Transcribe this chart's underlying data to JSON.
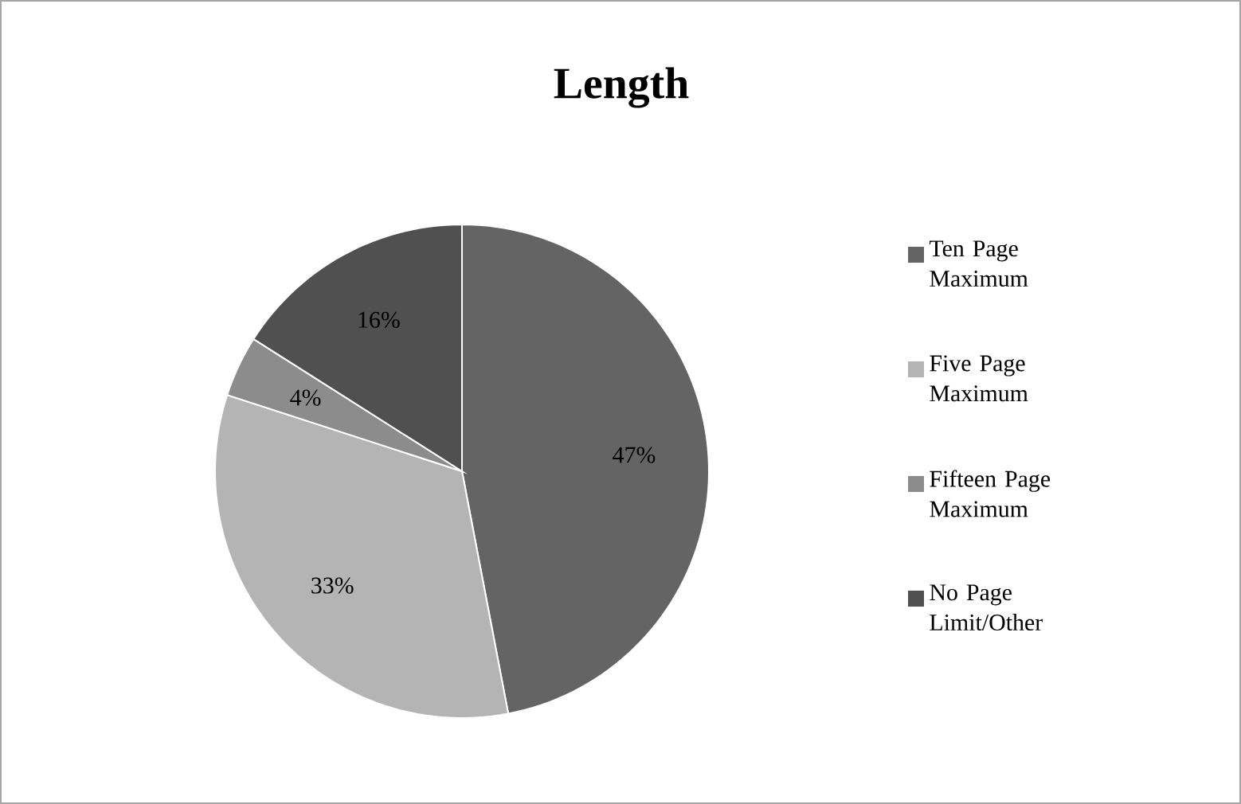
{
  "chart_data": {
    "type": "pie",
    "title": "Length",
    "categories": [
      "Ten Page Maximum",
      "Five Page Maximum",
      "Fifteen Page Maximum",
      "No Page Limit/Other"
    ],
    "values": [
      47,
      33,
      4,
      16
    ],
    "colors": [
      "#646464",
      "#b4b4b4",
      "#8c8c8c",
      "#505050"
    ],
    "value_labels": [
      "47%",
      "33%",
      "4%",
      "16%"
    ],
    "legend": "right"
  }
}
